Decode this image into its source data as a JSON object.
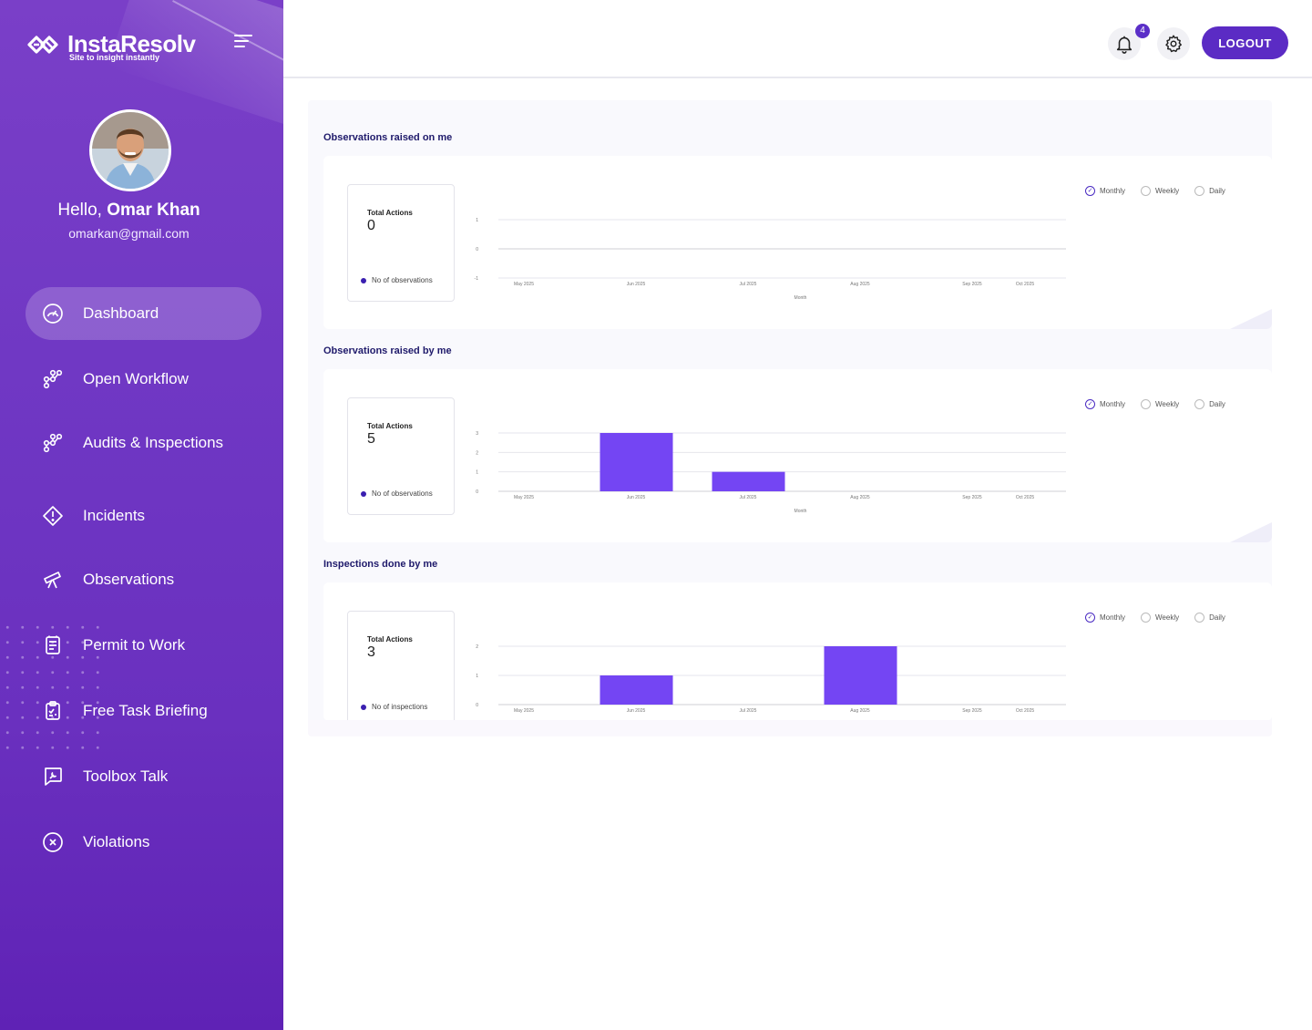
{
  "brand": {
    "name": "InstaResolv",
    "tagline": "Site to insight instantly"
  },
  "user": {
    "greeting": "Hello,",
    "name": "Omar Khan",
    "email": "omarkan@gmail.com"
  },
  "nav": [
    {
      "label": "Dashboard",
      "icon": "dashboard-gauge-icon",
      "active": true
    },
    {
      "label": "Open Workflow",
      "icon": "workflow-icon"
    },
    {
      "label": "Audits & Inspections",
      "icon": "workflow-icon"
    },
    {
      "label": "Incidents",
      "icon": "alert-diamond-icon"
    },
    {
      "label": "Observations",
      "icon": "telescope-icon"
    },
    {
      "label": "Permit to Work",
      "icon": "permit-icon"
    },
    {
      "label": "Free Task Briefing",
      "icon": "clipboard-check-icon"
    },
    {
      "label": "Toolbox Talk",
      "icon": "wrench-chat-icon"
    },
    {
      "label": "Violations",
      "icon": "x-circle-icon"
    }
  ],
  "header": {
    "notification_count": "4",
    "logout_label": "LOGOUT"
  },
  "sections": [
    {
      "title": "Observations raised on me",
      "total_label": "Total Actions",
      "total_value": "0",
      "legend": "No of observations",
      "filters": [
        "Monthly",
        "Weekly",
        "Daily"
      ],
      "selected_filter": "Monthly",
      "chart_data": {
        "type": "bar",
        "categories": [
          "May 2025",
          "Jun 2025",
          "Jul 2025",
          "Aug 2025",
          "Sep 2025",
          "Oct 2025"
        ],
        "values": [
          0,
          0,
          0,
          0,
          0,
          0
        ],
        "yticks": [
          "1",
          "0",
          "-1"
        ],
        "ylim": [
          -1,
          1
        ],
        "xlabel": "Month",
        "color": "#7445f3"
      }
    },
    {
      "title": "Observations raised by me",
      "total_label": "Total Actions",
      "total_value": "5",
      "legend": "No of observations",
      "filters": [
        "Monthly",
        "Weekly",
        "Daily"
      ],
      "selected_filter": "Monthly",
      "chart_data": {
        "type": "bar",
        "categories": [
          "May 2025",
          "Jun 2025",
          "Jul 2025",
          "Aug 2025",
          "Sep 2025",
          "Oct 2025"
        ],
        "values": [
          0,
          3,
          1,
          0,
          0,
          0
        ],
        "yticks": [
          "3",
          "2",
          "1",
          "0"
        ],
        "ylim": [
          0,
          3
        ],
        "xlabel": "Month",
        "color": "#7445f3"
      }
    },
    {
      "title": "Inspections done by me",
      "total_label": "Total Actions",
      "total_value": "3",
      "legend": "No of inspections",
      "filters": [
        "Monthly",
        "Weekly",
        "Daily"
      ],
      "selected_filter": "Monthly",
      "chart_data": {
        "type": "bar",
        "categories": [
          "May 2025",
          "Jun 2025",
          "Jul 2025",
          "Aug 2025",
          "Sep 2025",
          "Oct 2025"
        ],
        "values": [
          0,
          1,
          0,
          2,
          0,
          0
        ],
        "yticks": [
          "2",
          "1",
          "0"
        ],
        "ylim": [
          0,
          2
        ],
        "xlabel": "",
        "color": "#7445f3"
      }
    }
  ]
}
